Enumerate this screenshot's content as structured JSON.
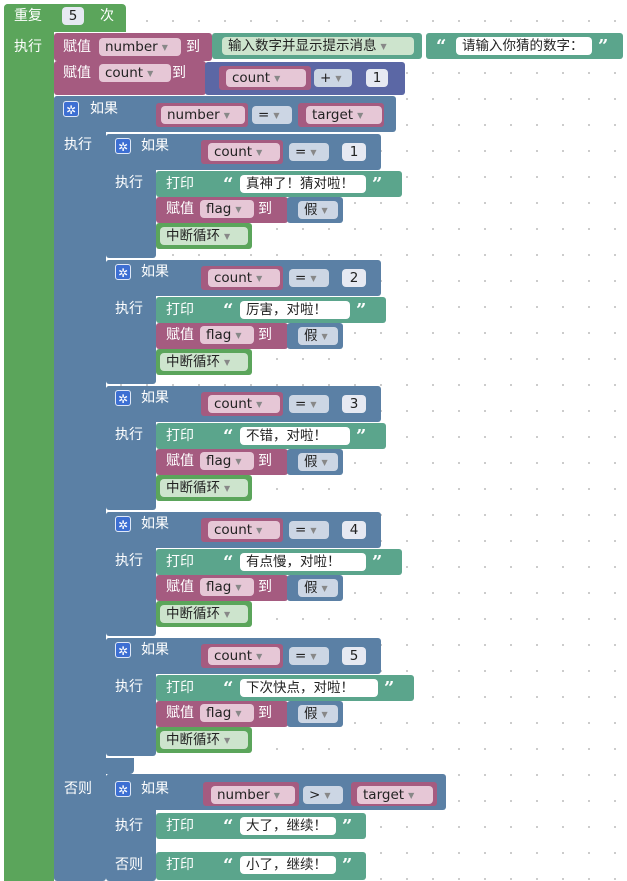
{
  "repeat": {
    "label": "重复",
    "times": "5",
    "times_label": "次",
    "do_label": "执行"
  },
  "assign1": {
    "label": "赋值",
    "var": "number",
    "to": "到",
    "prompt_block": "输入数字并显示提示消息",
    "prompt_text": "请输入你猜的数字："
  },
  "assign2": {
    "label": "赋值",
    "var": "count",
    "to": "到",
    "inner_var": "count",
    "op": "+",
    "num": "1"
  },
  "if_outer": {
    "label": "如果",
    "var": "number",
    "op": "=",
    "target": "target",
    "do_label": "执行",
    "else_label": "否则"
  },
  "if_blocks": [
    {
      "if_label": "如果",
      "do_label": "执行",
      "var": "count",
      "op": "=",
      "num": "1",
      "print_label": "打印",
      "msg": "真神了！猜对啦！",
      "assign_label": "赋值",
      "flag_var": "flag",
      "to": "到",
      "value": "假",
      "break_label": "中断循环"
    },
    {
      "if_label": "如果",
      "do_label": "执行",
      "var": "count",
      "op": "=",
      "num": "2",
      "print_label": "打印",
      "msg": "厉害，对啦！",
      "assign_label": "赋值",
      "flag_var": "flag",
      "to": "到",
      "value": "假",
      "break_label": "中断循环"
    },
    {
      "if_label": "如果",
      "do_label": "执行",
      "var": "count",
      "op": "=",
      "num": "3",
      "print_label": "打印",
      "msg": "不错，对啦！",
      "assign_label": "赋值",
      "flag_var": "flag",
      "to": "到",
      "value": "假",
      "break_label": "中断循环"
    },
    {
      "if_label": "如果",
      "do_label": "执行",
      "var": "count",
      "op": "=",
      "num": "4",
      "print_label": "打印",
      "msg": "有点慢，对啦！",
      "assign_label": "赋值",
      "flag_var": "flag",
      "to": "到",
      "value": "假",
      "break_label": "中断循环"
    },
    {
      "if_label": "如果",
      "do_label": "执行",
      "var": "count",
      "op": "=",
      "num": "5",
      "print_label": "打印",
      "msg": "下次快点，对啦！",
      "assign_label": "赋值",
      "flag_var": "flag",
      "to": "到",
      "value": "假",
      "break_label": "中断循环"
    }
  ],
  "if_else": {
    "if_label": "如果",
    "var": "number",
    "op": ">",
    "target": "target",
    "do_label": "执行",
    "else_label": "否则",
    "print_label": "打印",
    "msg_greater": "大了，继续！",
    "msg_less": "小了，继续！"
  },
  "colors": {
    "loop": "#5ba55b",
    "logic": "#5b80a5",
    "variable": "#a55b80",
    "math": "#5b67a5",
    "text": "#5ba58c"
  }
}
